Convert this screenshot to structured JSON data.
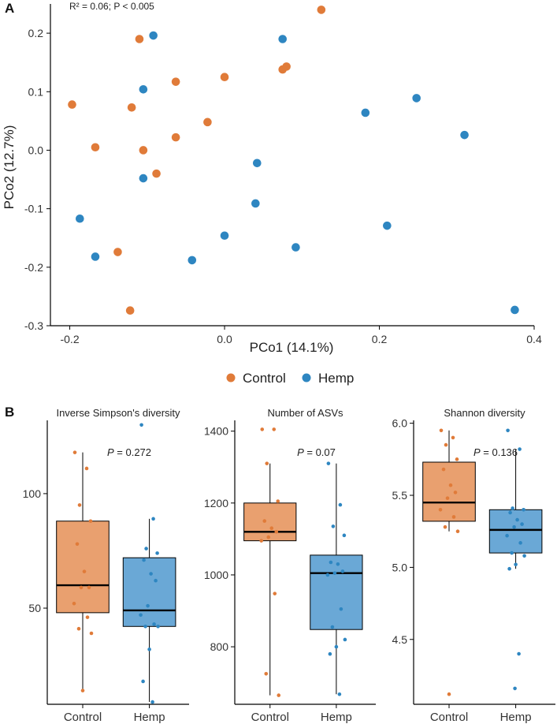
{
  "colors": {
    "control": "#E07B39",
    "hemp": "#2E86C1",
    "control_box": "#E9A06F",
    "hemp_box": "#6AA8D6",
    "axis": "#000000"
  },
  "panel_a": {
    "label": "A",
    "annotation": "R² = 0.06; P < 0.005",
    "legend": [
      {
        "name": "Control",
        "color": "#E07B39"
      },
      {
        "name": "Hemp",
        "color": "#2E86C1"
      }
    ]
  },
  "panel_b": {
    "label": "B"
  },
  "chart_data": [
    {
      "type": "scatter",
      "xlabel": "PCo1 (14.1%)",
      "ylabel": "PCo2 (12.7%)",
      "xlim": [
        -0.225,
        0.4
      ],
      "ylim": [
        -0.3,
        0.25
      ],
      "xticks": [
        -0.2,
        0.0,
        0.2,
        0.4
      ],
      "xtick_labels": [
        "-0.2",
        "0.0",
        "0.2",
        "0.4"
      ],
      "yticks": [
        -0.3,
        -0.2,
        -0.1,
        0.0,
        0.1,
        0.2
      ],
      "ytick_labels": [
        "-0.3",
        "-0.2",
        "-0.1",
        "0.0",
        "0.1",
        "0.2"
      ],
      "legend_position": "bottom",
      "series": [
        {
          "name": "Control",
          "color": "#E07B39",
          "points": [
            [
              0.125,
              0.24
            ],
            [
              -0.11,
              0.19
            ],
            [
              0.08,
              0.143
            ],
            [
              0.075,
              0.138
            ],
            [
              -0.063,
              0.117
            ],
            [
              0.0,
              0.125
            ],
            [
              -0.197,
              0.078
            ],
            [
              -0.12,
              0.073
            ],
            [
              -0.022,
              0.048
            ],
            [
              -0.063,
              0.022
            ],
            [
              -0.167,
              0.005
            ],
            [
              -0.105,
              0.0
            ],
            [
              -0.088,
              -0.04
            ],
            [
              -0.138,
              -0.174
            ],
            [
              -0.122,
              -0.274
            ]
          ]
        },
        {
          "name": "Hemp",
          "color": "#2E86C1",
          "points": [
            [
              -0.092,
              0.196
            ],
            [
              0.075,
              0.19
            ],
            [
              -0.105,
              0.104
            ],
            [
              0.248,
              0.089
            ],
            [
              0.182,
              0.064
            ],
            [
              0.31,
              0.026
            ],
            [
              0.042,
              -0.022
            ],
            [
              -0.105,
              -0.048
            ],
            [
              0.04,
              -0.091
            ],
            [
              -0.187,
              -0.117
            ],
            [
              0.21,
              -0.129
            ],
            [
              0.0,
              -0.146
            ],
            [
              0.092,
              -0.166
            ],
            [
              -0.167,
              -0.182
            ],
            [
              -0.042,
              -0.188
            ],
            [
              0.375,
              -0.273
            ]
          ]
        }
      ]
    },
    {
      "type": "box",
      "title": "Inverse Simpson's diversity",
      "pvalue_prefix": "P",
      "pvalue_text": " = 0.272",
      "categories": [
        "Control",
        "Hemp"
      ],
      "ylim": [
        8,
        132
      ],
      "yticks": [
        50,
        100
      ],
      "ytick_labels": [
        "50",
        "100"
      ],
      "boxes": [
        {
          "name": "Control",
          "q1": 48,
          "median": 60,
          "q3": 88,
          "whisker_low": 14,
          "whisker_high": 118
        },
        {
          "name": "Hemp",
          "q1": 42,
          "median": 49,
          "q3": 72,
          "whisker_low": 9,
          "whisker_high": 89
        }
      ],
      "points": [
        {
          "name": "Control",
          "values": [
            118,
            111,
            95,
            88,
            78,
            66,
            59,
            59,
            52,
            46,
            41,
            39,
            14
          ]
        },
        {
          "name": "Hemp",
          "values": [
            130,
            89,
            76,
            74,
            71,
            65,
            62,
            51,
            47,
            43,
            42,
            42,
            32,
            18,
            9
          ]
        }
      ]
    },
    {
      "type": "box",
      "title": "Number of ASVs",
      "pvalue_prefix": "P",
      "pvalue_text": " = 0.07",
      "categories": [
        "Control",
        "Hemp"
      ],
      "ylim": [
        640,
        1430
      ],
      "yticks": [
        800,
        1000,
        1200,
        1400
      ],
      "ytick_labels": [
        "800",
        "1000",
        "1200",
        "1400"
      ],
      "boxes": [
        {
          "name": "Control",
          "q1": 1095,
          "median": 1120,
          "q3": 1200,
          "whisker_low": 665,
          "whisker_high": 1310
        },
        {
          "name": "Hemp",
          "q1": 848,
          "median": 1005,
          "q3": 1055,
          "whisker_low": 668,
          "whisker_high": 1310
        }
      ],
      "points": [
        {
          "name": "Control",
          "values": [
            1405,
            1405,
            1310,
            1205,
            1150,
            1130,
            1120,
            1105,
            1095,
            948,
            725,
            665
          ]
        },
        {
          "name": "Hemp",
          "values": [
            1310,
            1195,
            1135,
            1110,
            1035,
            1030,
            1010,
            1005,
            1000,
            905,
            855,
            820,
            800,
            780,
            668
          ]
        }
      ]
    },
    {
      "type": "box",
      "title": "Shannon diversity",
      "pvalue_prefix": "P",
      "pvalue_text": " = 0.136",
      "categories": [
        "Control",
        "Hemp"
      ],
      "ylim": [
        4.05,
        6.02
      ],
      "yticks": [
        4.5,
        5.0,
        5.5,
        6.0
      ],
      "ytick_labels": [
        "4.5",
        "5.0",
        "5.5",
        "6.0"
      ],
      "boxes": [
        {
          "name": "Control",
          "q1": 5.32,
          "median": 5.45,
          "q3": 5.73,
          "whisker_low": 5.25,
          "whisker_high": 5.95
        },
        {
          "name": "Hemp",
          "q1": 5.1,
          "median": 5.26,
          "q3": 5.4,
          "whisker_low": 4.99,
          "whisker_high": 5.82
        }
      ],
      "points": [
        {
          "name": "Control",
          "values": [
            5.95,
            5.9,
            5.85,
            5.75,
            5.68,
            5.57,
            5.52,
            5.48,
            5.4,
            5.35,
            5.28,
            5.25,
            4.12
          ]
        },
        {
          "name": "Hemp",
          "values": [
            5.95,
            5.82,
            5.41,
            5.4,
            5.38,
            5.33,
            5.3,
            5.28,
            5.22,
            5.17,
            5.1,
            5.08,
            5.02,
            4.99,
            4.4,
            4.16
          ]
        }
      ]
    }
  ]
}
